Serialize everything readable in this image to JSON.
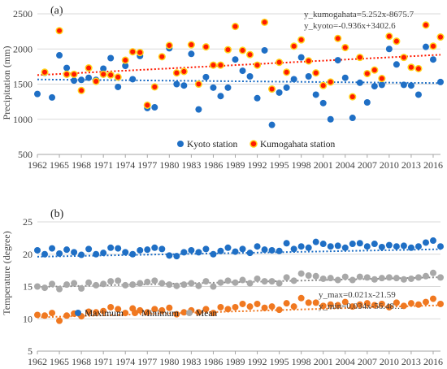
{
  "colors": {
    "kyoto": "#1f6fc5",
    "kumogahata_fill": "#ff1a00",
    "kumogahata_stroke": "#ffd21a",
    "maximum": "#1f6fc5",
    "minimum": "#f07820",
    "mean": "#a8a8a8"
  },
  "chart_data": [
    {
      "type": "scatter",
      "panel_label": "(a)",
      "ylabel": "Precipitation (mm)",
      "xlim": [
        1962,
        2017
      ],
      "ylim": [
        500,
        2500
      ],
      "yticks": [
        500,
        1000,
        1500,
        2000,
        2500
      ],
      "xticks": [
        1962,
        1965,
        1968,
        1971,
        1974,
        1977,
        1980,
        1983,
        1986,
        1989,
        1992,
        1995,
        1998,
        2001,
        2004,
        2007,
        2010,
        2013,
        2016
      ],
      "x": [
        1962,
        1963,
        1964,
        1965,
        1966,
        1967,
        1968,
        1969,
        1970,
        1971,
        1972,
        1973,
        1974,
        1975,
        1976,
        1977,
        1978,
        1979,
        1980,
        1981,
        1982,
        1983,
        1984,
        1985,
        1986,
        1987,
        1988,
        1989,
        1990,
        1991,
        1992,
        1993,
        1994,
        1995,
        1996,
        1997,
        1998,
        1999,
        2000,
        2001,
        2002,
        2003,
        2004,
        2005,
        2006,
        2007,
        2008,
        2009,
        2010,
        2011,
        2012,
        2013,
        2014,
        2015,
        2016,
        2017
      ],
      "series": [
        {
          "name": "Kyoto station",
          "values": [
            1360,
            1660,
            1310,
            1910,
            1730,
            1550,
            1560,
            1590,
            1560,
            1720,
            1870,
            1460,
            1760,
            1570,
            1900,
            1160,
            1170,
            1890,
            2010,
            1500,
            1480,
            1930,
            1140,
            1600,
            1450,
            1330,
            1450,
            1850,
            1690,
            1610,
            1300,
            1980,
            920,
            1380,
            1450,
            1570,
            1880,
            1610,
            1350,
            1230,
            1000,
            1840,
            1590,
            1020,
            1520,
            1240,
            1470,
            1490,
            2000,
            1780,
            1490,
            1480,
            1350,
            2030,
            1850,
            1530
          ]
        },
        {
          "name": "Kumogahata station",
          "values": [
            null,
            1670,
            null,
            2260,
            1640,
            1640,
            1410,
            1730,
            1540,
            1640,
            1630,
            1600,
            1840,
            1960,
            1950,
            1200,
            1460,
            1890,
            2050,
            1660,
            1680,
            2060,
            1500,
            2030,
            1770,
            1770,
            1990,
            2320,
            1980,
            1920,
            1770,
            2380,
            1430,
            1810,
            1670,
            2040,
            2130,
            1830,
            1660,
            1480,
            1530,
            2150,
            2020,
            1320,
            1880,
            1650,
            1700,
            1580,
            2180,
            2110,
            1880,
            1740,
            1720,
            2340,
            2040,
            2170
          ]
        }
      ],
      "trendlines": [
        {
          "series": "Kumogahata station",
          "slope": 5.252,
          "intercept": -8675.7,
          "equation": "y_kumogahata=5.252x-8675.7"
        },
        {
          "series": "Kyoto station",
          "slope": -0.936,
          "intercept": 3402.6,
          "equation": "y_kyoto=-0.936x+3402.6"
        }
      ],
      "legend": "bottom-center"
    },
    {
      "type": "line",
      "panel_label": "(b)",
      "ylabel": "Temperature (degree)",
      "xlim": [
        1962,
        2017
      ],
      "ylim": [
        5,
        25
      ],
      "yticks": [
        5,
        10,
        15,
        20,
        25
      ],
      "xticks": [
        1962,
        1965,
        1968,
        1971,
        1974,
        1977,
        1980,
        1983,
        1986,
        1989,
        1992,
        1995,
        1998,
        2001,
        2004,
        2007,
        2010,
        2013,
        2016
      ],
      "x": [
        1962,
        1963,
        1964,
        1965,
        1966,
        1967,
        1968,
        1969,
        1970,
        1971,
        1972,
        1973,
        1974,
        1975,
        1976,
        1977,
        1978,
        1979,
        1980,
        1981,
        1982,
        1983,
        1984,
        1985,
        1986,
        1987,
        1988,
        1989,
        1990,
        1991,
        1992,
        1993,
        1994,
        1995,
        1996,
        1997,
        1998,
        1999,
        2000,
        2001,
        2002,
        2003,
        2004,
        2005,
        2006,
        2007,
        2008,
        2009,
        2010,
        2011,
        2012,
        2013,
        2014,
        2015,
        2016,
        2017
      ],
      "series": [
        {
          "name": "Maximum",
          "values": [
            20.6,
            20.0,
            20.9,
            20.1,
            20.7,
            20.3,
            19.9,
            20.8,
            20.0,
            20.2,
            21.0,
            20.9,
            20.3,
            20.0,
            20.6,
            20.7,
            21.0,
            20.8,
            19.8,
            19.7,
            20.3,
            20.6,
            20.3,
            20.8,
            20.0,
            20.5,
            21.0,
            20.4,
            20.8,
            20.2,
            21.2,
            20.7,
            20.6,
            20.5,
            21.7,
            20.8,
            21.2,
            21.0,
            21.9,
            21.6,
            21.2,
            21.3,
            21.0,
            21.6,
            21.7,
            21.2,
            21.6,
            21.1,
            21.4,
            21.2,
            21.3,
            21.0,
            21.2,
            21.8,
            22.1,
            21.2
          ]
        },
        {
          "name": "Minimum",
          "values": [
            10.6,
            10.5,
            10.9,
            9.7,
            10.5,
            10.8,
            10.4,
            11.1,
            11.0,
            11.2,
            11.8,
            11.5,
            10.9,
            11.6,
            11.3,
            11.0,
            11.5,
            11.3,
            11.7,
            10.7,
            11.0,
            11.3,
            11.0,
            11.5,
            10.9,
            11.8,
            11.5,
            11.8,
            12.3,
            11.9,
            12.3,
            11.7,
            11.9,
            11.4,
            12.4,
            11.9,
            13.2,
            12.5,
            12.5,
            12.0,
            12.2,
            12.1,
            12.6,
            11.9,
            12.2,
            12.4,
            12.1,
            12.3,
            11.8,
            12.5,
            12.0,
            12.4,
            12.2,
            12.6,
            13.1,
            12.3
          ]
        },
        {
          "name": "Mean",
          "values": [
            15.0,
            14.8,
            15.4,
            14.6,
            15.3,
            15.5,
            14.7,
            15.6,
            15.2,
            15.4,
            15.8,
            15.9,
            15.2,
            15.3,
            15.5,
            15.7,
            15.9,
            15.5,
            15.3,
            15.1,
            15.3,
            15.5,
            15.1,
            15.8,
            15.0,
            15.6,
            15.9,
            15.6,
            16.0,
            15.5,
            16.2,
            15.8,
            15.8,
            15.5,
            16.4,
            15.9,
            17.0,
            16.7,
            16.6,
            16.2,
            16.3,
            16.0,
            16.5,
            16.0,
            16.5,
            16.4,
            16.1,
            16.3,
            16.4,
            16.3,
            16.1,
            16.2,
            16.4,
            16.6,
            17.1,
            16.4
          ]
        }
      ],
      "trendlines": [
        {
          "series": "Maximum",
          "slope": 0.021,
          "intercept": -21.59,
          "equation": "y_max=0.021x-21.59"
        },
        {
          "series": "Minimum",
          "slope": 0.034,
          "intercept": -56.48,
          "equation": "y_min=0.034x-56.48…"
        },
        {
          "series": "Mean",
          "slope": 0.0275,
          "intercept": -39.03,
          "equation": ""
        }
      ],
      "legend": "bottom-left"
    }
  ]
}
